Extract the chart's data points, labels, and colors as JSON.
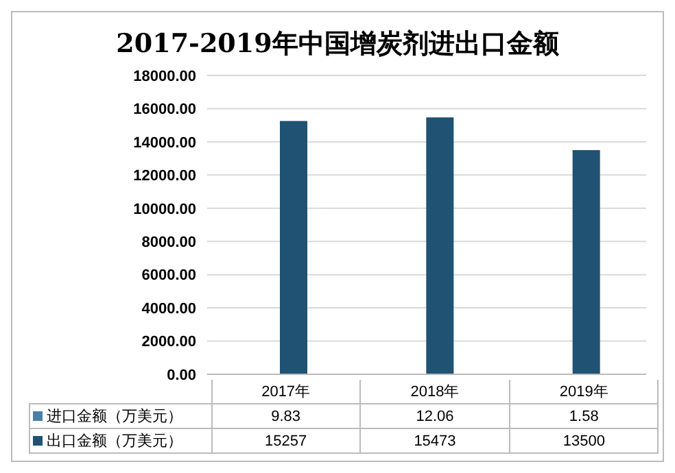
{
  "chart_data": {
    "type": "bar",
    "title": "2017-2019年中国增炭剂进出口金额",
    "categories": [
      "2017年",
      "2018年",
      "2019年"
    ],
    "series": [
      {
        "name": "进口金额（万美元）",
        "color": "#4a7fa8",
        "values": [
          9.83,
          12.06,
          1.58
        ]
      },
      {
        "name": "出口金额（万美元）",
        "color": "#1f5273",
        "values": [
          15257,
          15473,
          13500
        ]
      }
    ],
    "ylim": [
      0,
      18000
    ],
    "yticks": [
      {
        "value": 0,
        "label": "0.00"
      },
      {
        "value": 2000,
        "label": "2000.00"
      },
      {
        "value": 4000,
        "label": "4000.00"
      },
      {
        "value": 6000,
        "label": "6000.00"
      },
      {
        "value": 8000,
        "label": "8000.00"
      },
      {
        "value": 10000,
        "label": "10000.00"
      },
      {
        "value": 12000,
        "label": "12000.00"
      },
      {
        "value": 14000,
        "label": "14000.00"
      },
      {
        "value": 16000,
        "label": "16000.00"
      },
      {
        "value": 18000,
        "label": "18000.00"
      }
    ],
    "grid": "y",
    "legend": "bottom",
    "data_labels": true
  }
}
